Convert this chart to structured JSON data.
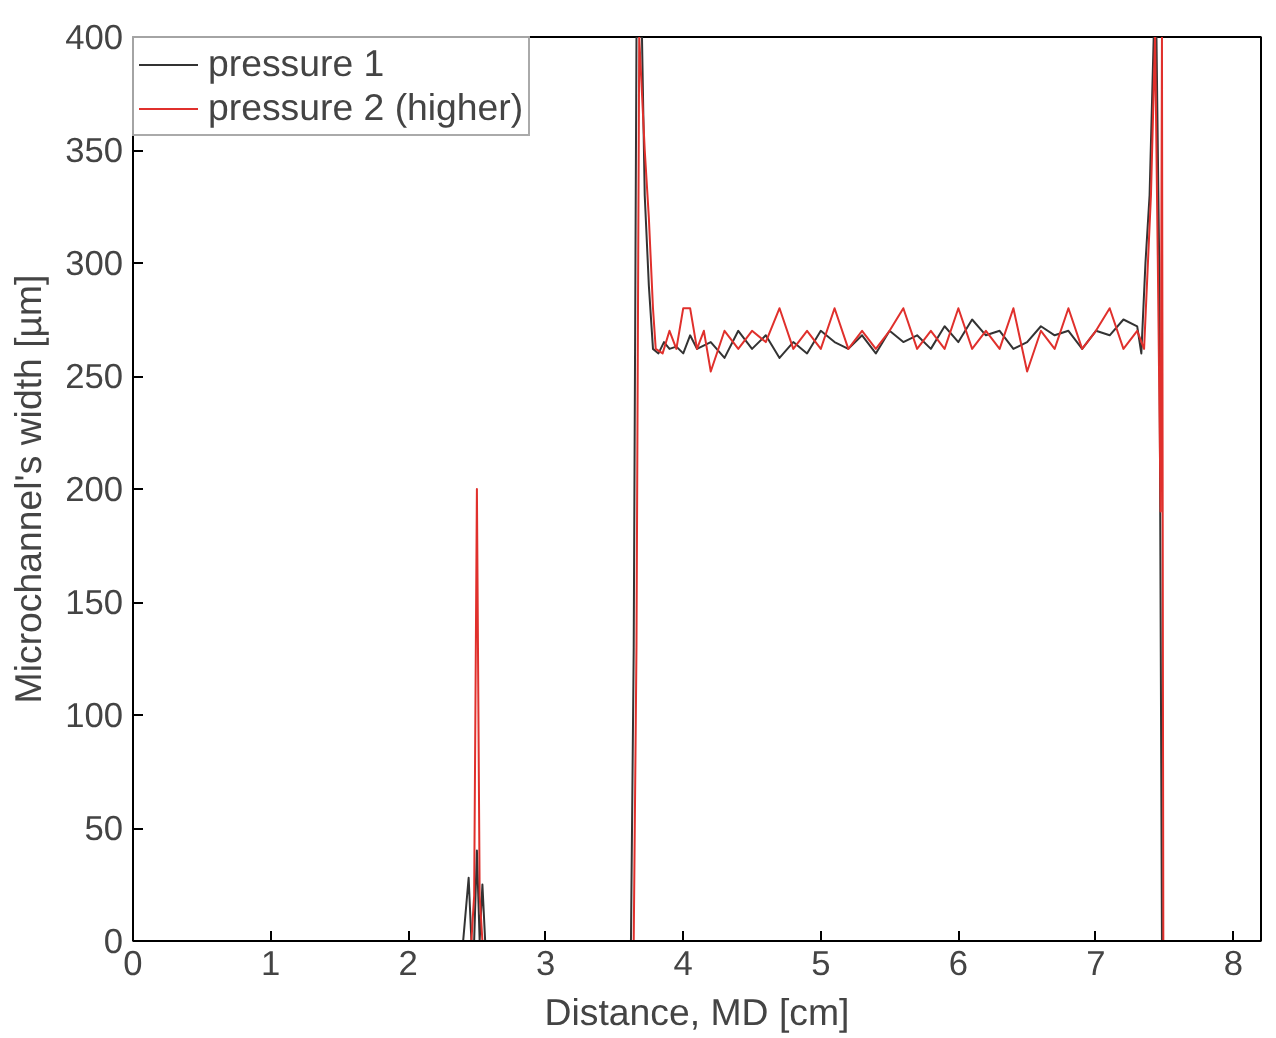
{
  "chart_data": {
    "type": "line",
    "xlabel": "Distance, MD [cm]",
    "ylabel": "Microchannel's width [µm]",
    "xlim": [
      0,
      8.2
    ],
    "ylim": [
      0,
      400
    ],
    "xticks": [
      0,
      1,
      2,
      3,
      4,
      5,
      6,
      7,
      8
    ],
    "yticks": [
      0,
      50,
      100,
      150,
      200,
      250,
      300,
      350,
      400
    ],
    "grid": false,
    "legend": "top left",
    "line_style": "solid",
    "marker": "none",
    "series": [
      {
        "name": "pressure 1",
        "color": "#333333",
        "x": [
          0,
          2.4,
          2.44,
          2.46,
          2.48,
          2.5,
          2.52,
          2.54,
          2.56,
          2.58,
          2.6,
          3.62,
          3.64,
          3.66,
          3.7,
          3.72,
          3.75,
          3.78,
          3.82,
          3.86,
          3.9,
          3.95,
          4.0,
          4.05,
          4.1,
          4.2,
          4.3,
          4.4,
          4.5,
          4.6,
          4.7,
          4.8,
          4.9,
          5.0,
          5.1,
          5.2,
          5.3,
          5.4,
          5.5,
          5.6,
          5.7,
          5.8,
          5.9,
          6.0,
          6.1,
          6.2,
          6.3,
          6.4,
          6.5,
          6.6,
          6.7,
          6.8,
          6.9,
          7.0,
          7.1,
          7.2,
          7.3,
          7.33,
          7.36,
          7.39,
          7.42,
          7.44,
          7.46,
          7.48,
          8.2
        ],
        "values": [
          0,
          0,
          28,
          0,
          0,
          40,
          0,
          25,
          0,
          0,
          0,
          0,
          130,
          400,
          400,
          330,
          290,
          262,
          260,
          265,
          262,
          263,
          260,
          268,
          262,
          265,
          258,
          270,
          262,
          268,
          258,
          265,
          260,
          270,
          265,
          262,
          268,
          260,
          270,
          265,
          268,
          262,
          272,
          265,
          275,
          268,
          270,
          262,
          265,
          272,
          268,
          270,
          262,
          270,
          268,
          275,
          272,
          260,
          300,
          330,
          400,
          400,
          300,
          0,
          0
        ]
      },
      {
        "name": "pressure 2 (higher)",
        "color": "#e0302c",
        "x": [
          0,
          2.46,
          2.48,
          2.5,
          2.52,
          2.54,
          3.62,
          3.64,
          3.66,
          3.68,
          3.72,
          3.75,
          3.78,
          3.8,
          3.85,
          3.9,
          3.95,
          4.0,
          4.05,
          4.1,
          4.15,
          4.2,
          4.3,
          4.4,
          4.5,
          4.6,
          4.7,
          4.8,
          4.9,
          5.0,
          5.1,
          5.2,
          5.3,
          5.4,
          5.5,
          5.6,
          5.7,
          5.8,
          5.9,
          6.0,
          6.1,
          6.2,
          6.3,
          6.4,
          6.5,
          6.6,
          6.7,
          6.8,
          6.9,
          7.0,
          7.1,
          7.2,
          7.3,
          7.35,
          7.4,
          7.43,
          7.45,
          7.47,
          7.48,
          7.49,
          8.2
        ],
        "values": [
          0,
          0,
          20,
          200,
          20,
          0,
          0,
          0,
          130,
          400,
          350,
          320,
          280,
          262,
          260,
          270,
          262,
          280,
          280,
          262,
          270,
          252,
          270,
          262,
          270,
          265,
          280,
          262,
          270,
          262,
          280,
          262,
          270,
          262,
          270,
          280,
          262,
          270,
          262,
          280,
          262,
          270,
          262,
          280,
          252,
          270,
          262,
          280,
          262,
          270,
          280,
          262,
          270,
          262,
          330,
          400,
          300,
          190,
          400,
          0,
          0
        ]
      }
    ]
  }
}
